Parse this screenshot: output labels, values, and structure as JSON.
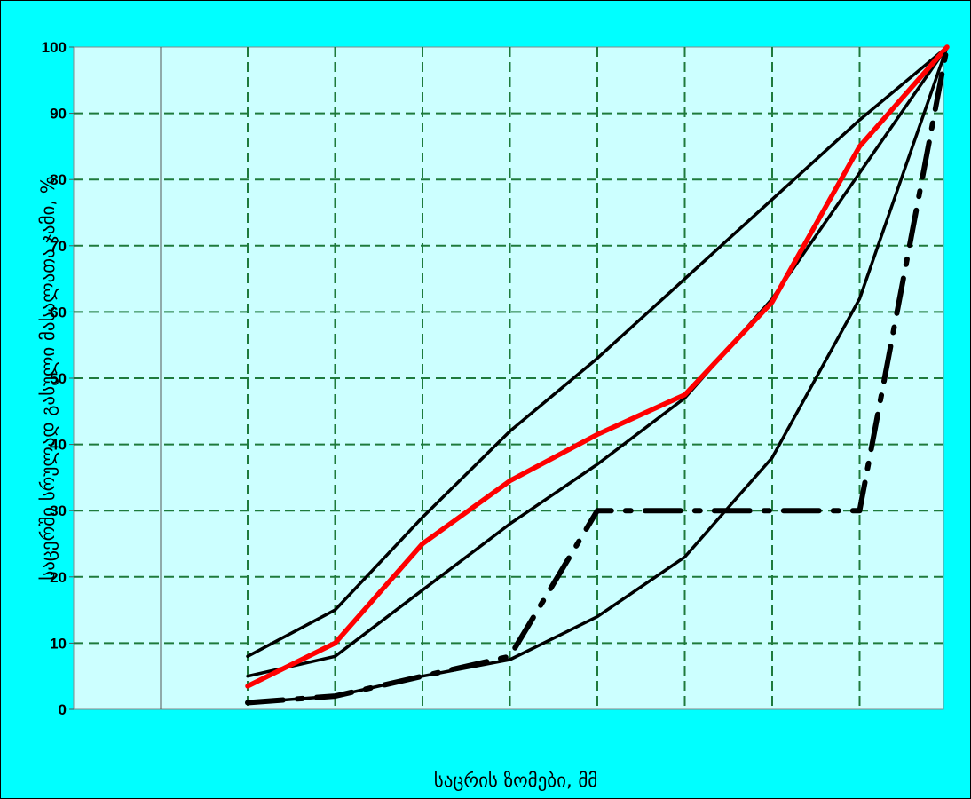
{
  "chart_data": {
    "type": "line",
    "title": "",
    "xlabel": "საცრის ზომები, მმ",
    "ylabel": "საცერში სრულად გასული მასალათა ჯამი, %",
    "ylim": [
      0,
      100
    ],
    "yticks": [
      0,
      10,
      20,
      30,
      40,
      50,
      60,
      70,
      80,
      90,
      100
    ],
    "x_positions": 9,
    "x_tick_labels": [],
    "grid": true,
    "series": [
      {
        "style": "upper-envelope",
        "color": "#000000",
        "values": [
          8,
          15,
          29,
          42,
          53,
          65,
          77,
          89,
          100
        ]
      },
      {
        "style": "middle",
        "color": "#000000",
        "values": [
          5,
          8,
          18,
          28,
          37,
          47,
          62,
          81,
          100
        ]
      },
      {
        "style": "lower-envelope",
        "color": "#000000",
        "values": [
          1,
          2,
          5,
          7.5,
          14,
          23,
          38,
          62,
          100
        ]
      },
      {
        "style": "measured",
        "color": "#ff0000",
        "values": [
          3.5,
          10,
          25,
          34.5,
          41.5,
          47.5,
          61.5,
          85,
          100
        ]
      },
      {
        "style": "dash-dot",
        "color": "#000000",
        "values": [
          1,
          2,
          5,
          8,
          30,
          30,
          30,
          30,
          100
        ]
      }
    ]
  }
}
